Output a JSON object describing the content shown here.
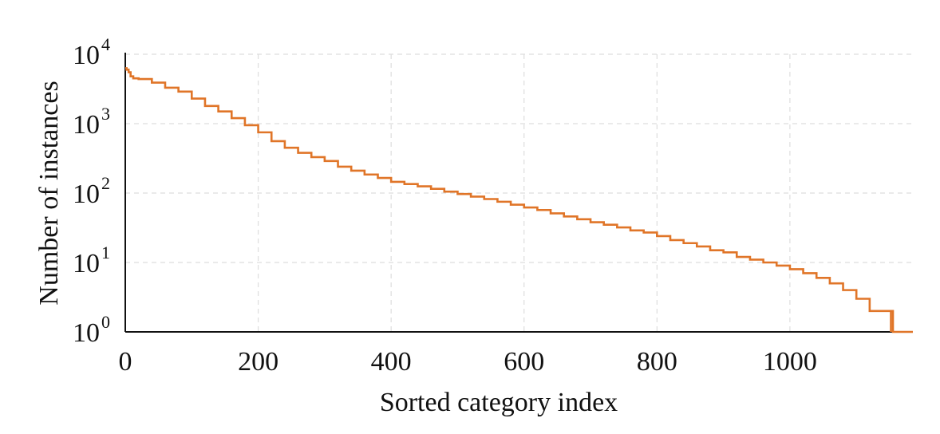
{
  "chart_data": {
    "type": "line",
    "title": "",
    "xlabel": "Sorted category index",
    "ylabel": "Number of instances",
    "x_ticks": [
      "0",
      "200",
      "400",
      "600",
      "800",
      "1000"
    ],
    "x_tick_values": [
      0,
      200,
      400,
      600,
      800,
      1000
    ],
    "y_ticks": [
      {
        "base": "10",
        "exp": "0"
      },
      {
        "base": "10",
        "exp": "1"
      },
      {
        "base": "10",
        "exp": "2"
      },
      {
        "base": "10",
        "exp": "3"
      },
      {
        "base": "10",
        "exp": "4"
      }
    ],
    "y_tick_values": [
      1,
      10,
      100,
      1000,
      10000
    ],
    "xlim": [
      0,
      1185
    ],
    "ylim": [
      1,
      10000
    ],
    "y_scale": "log",
    "grid": true,
    "line_style": "step",
    "color": "#E07528",
    "series": [
      {
        "x": [
          0,
          2,
          5,
          8,
          12,
          20,
          40,
          60,
          80,
          100,
          120,
          140,
          160,
          180,
          200,
          220,
          240,
          260,
          280,
          300,
          320,
          340,
          360,
          380,
          400,
          420,
          440,
          460,
          480,
          500,
          520,
          540,
          560,
          580,
          600,
          620,
          640,
          660,
          680,
          700,
          720,
          740,
          760,
          780,
          800,
          820,
          840,
          860,
          880,
          900,
          920,
          940,
          960,
          980,
          1000,
          1020,
          1040,
          1060,
          1080,
          1100,
          1120,
          1140,
          1155,
          1185
        ],
        "y": [
          6300,
          6000,
          5500,
          4800,
          4500,
          4400,
          3900,
          3300,
          2900,
          2300,
          1800,
          1500,
          1200,
          950,
          750,
          560,
          450,
          380,
          330,
          290,
          240,
          210,
          185,
          165,
          145,
          135,
          125,
          115,
          105,
          97,
          89,
          82,
          75,
          68,
          62,
          57,
          51,
          46,
          42,
          38,
          35,
          32,
          29,
          27,
          24,
          21,
          19,
          17,
          15,
          14,
          12,
          11,
          10,
          9,
          8,
          7,
          6,
          5,
          4,
          3,
          2,
          2,
          1,
          1
        ]
      }
    ]
  }
}
